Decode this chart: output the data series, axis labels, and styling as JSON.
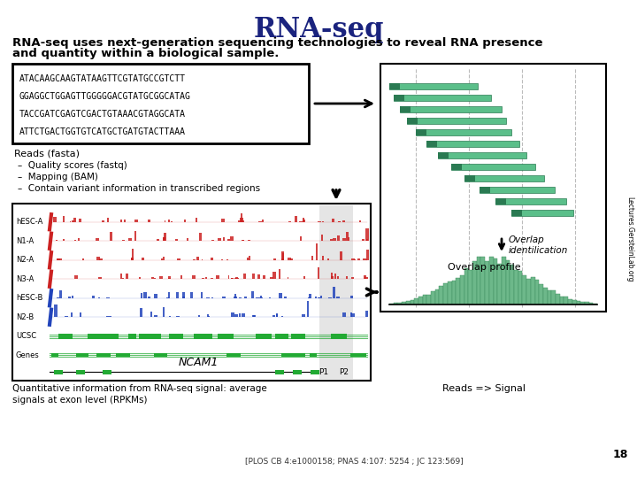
{
  "title": "RNA-seq",
  "subtitle_line1": "RNA-seq uses next-generation sequencing technologies to reveal RNA presence",
  "subtitle_line2": "and quantity within a biological sample.",
  "background_color": "#ffffff",
  "title_color": "#1a237e",
  "title_fontsize": 22,
  "subtitle_fontsize": 9.5,
  "dna_sequence": [
    "ATACAAGCAAGTATAAGTTCGTATGCCGTCTT",
    "GGAGGCTGGAGTTGGGGGACGTATGCGGCATAG",
    "TACCGATCGAGTCGACTGTAAACGTAGGCATA",
    "ATTCTGACTGGTGTCATGCTGATGTACTTAAA"
  ],
  "reads_text_title": "Reads (fasta)",
  "reads_text_items": [
    "Quality scores (fastq)",
    "Mapping (BAM)",
    "Contain variant information in transcribed regions"
  ],
  "caption_left": "Quantitative information from RNA-seq signal: average\nsignals at exon level (RPKMs)",
  "caption_right": "Reads => Signal",
  "citation": "[PLOS CB 4:e1000158; PNAS 4:107: 5254 ; JC 123:569]",
  "side_label": "Lectures.GersteinLab.org",
  "slide_number": "18",
  "overlap_arrow_label": "Overlap\nidentilication",
  "overlap_profile_label": "Overlap profile",
  "ncam_label": "NCAM1",
  "p1_label": "P1",
  "p2_label": "P2",
  "track_labels": [
    "hESC-A",
    "N1-A",
    "N2-A",
    "N3-A",
    "hESC-B",
    "N2-B",
    "UCSC",
    "Genes"
  ],
  "track_colors": [
    "#cc2222",
    "#cc2222",
    "#cc2222",
    "#cc2222",
    "#2244bb",
    "#2244bb",
    "#22aa33",
    "#22aa33"
  ],
  "read_bar_fill": "#5bbf8a",
  "read_bar_edge": "#2a7a52",
  "overlap_bar_fill": "#6db88a",
  "overlap_bar_edge": "#3a8a5a",
  "highlight_color": "#cccccc"
}
